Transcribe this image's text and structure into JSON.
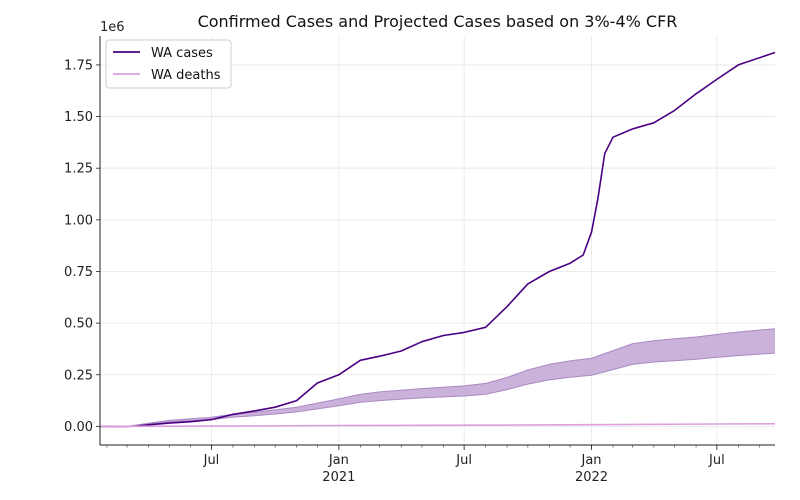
{
  "chart_data": {
    "type": "line",
    "title": "Confirmed Cases and Projected Cases based on 3%-4% CFR",
    "xlabel": "",
    "ylabel": "",
    "y_offset_label": "1e6",
    "ylim": [
      -0.09,
      1.89
    ],
    "xlim": [
      "2020-01-22",
      "2022-09-23"
    ],
    "y_ticks": [
      0.0,
      0.25,
      0.5,
      0.75,
      1.0,
      1.25,
      1.5,
      1.75
    ],
    "y_tick_labels": [
      "0.00",
      "0.25",
      "0.50",
      "0.75",
      "1.00",
      "1.25",
      "1.50",
      "1.75"
    ],
    "x_ticks": [
      {
        "date": "2020-07-01",
        "label": "Jul",
        "sublabel": ""
      },
      {
        "date": "2021-01-01",
        "label": "Jan",
        "sublabel": "2021"
      },
      {
        "date": "2021-07-01",
        "label": "Jul",
        "sublabel": ""
      },
      {
        "date": "2022-01-01",
        "label": "Jan",
        "sublabel": "2022"
      },
      {
        "date": "2022-07-01",
        "label": "Jul",
        "sublabel": ""
      }
    ],
    "grid": true,
    "legend_position": "top-left",
    "legend": [
      "WA cases",
      "WA deaths"
    ],
    "colors": {
      "cases": "#4b0082",
      "deaths": "#dda0dd",
      "band": "#c8aed8",
      "band_edge": "#a989c4"
    },
    "series": [
      {
        "name": "WA cases",
        "points": [
          [
            "2020-01-22",
            0.0
          ],
          [
            "2020-03-01",
            0.0
          ],
          [
            "2020-03-15",
            0.002
          ],
          [
            "2020-04-01",
            0.008
          ],
          [
            "2020-05-01",
            0.016
          ],
          [
            "2020-06-01",
            0.023
          ],
          [
            "2020-07-01",
            0.033
          ],
          [
            "2020-08-01",
            0.058
          ],
          [
            "2020-09-01",
            0.075
          ],
          [
            "2020-10-01",
            0.093
          ],
          [
            "2020-11-01",
            0.125
          ],
          [
            "2020-12-01",
            0.21
          ],
          [
            "2021-01-01",
            0.25
          ],
          [
            "2021-02-01",
            0.32
          ],
          [
            "2021-03-01",
            0.34
          ],
          [
            "2021-04-01",
            0.365
          ],
          [
            "2021-05-01",
            0.41
          ],
          [
            "2021-06-01",
            0.44
          ],
          [
            "2021-07-01",
            0.455
          ],
          [
            "2021-08-01",
            0.48
          ],
          [
            "2021-09-01",
            0.58
          ],
          [
            "2021-10-01",
            0.69
          ],
          [
            "2021-11-01",
            0.75
          ],
          [
            "2021-12-01",
            0.79
          ],
          [
            "2021-12-20",
            0.83
          ],
          [
            "2022-01-01",
            0.94
          ],
          [
            "2022-01-10",
            1.1
          ],
          [
            "2022-01-20",
            1.32
          ],
          [
            "2022-02-01",
            1.4
          ],
          [
            "2022-03-01",
            1.44
          ],
          [
            "2022-04-01",
            1.47
          ],
          [
            "2022-05-01",
            1.53
          ],
          [
            "2022-06-01",
            1.61
          ],
          [
            "2022-07-01",
            1.68
          ],
          [
            "2022-08-01",
            1.75
          ],
          [
            "2022-09-23",
            1.81
          ]
        ]
      },
      {
        "name": "WA deaths",
        "points": [
          [
            "2020-01-22",
            0.0
          ],
          [
            "2020-07-01",
            0.0015
          ],
          [
            "2021-01-01",
            0.004
          ],
          [
            "2021-07-01",
            0.006
          ],
          [
            "2022-01-01",
            0.0085
          ],
          [
            "2022-07-01",
            0.0115
          ],
          [
            "2022-09-23",
            0.0125
          ]
        ]
      }
    ],
    "projection_band": {
      "points": [
        [
          "2020-01-22",
          0.0,
          0.0
        ],
        [
          "2020-03-01",
          0.0,
          0.0
        ],
        [
          "2020-04-01",
          0.012,
          0.015
        ],
        [
          "2020-05-01",
          0.022,
          0.029
        ],
        [
          "2020-06-01",
          0.028,
          0.037
        ],
        [
          "2020-07-01",
          0.033,
          0.044
        ],
        [
          "2020-08-01",
          0.045,
          0.059
        ],
        [
          "2020-09-01",
          0.052,
          0.069
        ],
        [
          "2020-10-01",
          0.06,
          0.08
        ],
        [
          "2020-11-01",
          0.07,
          0.093
        ],
        [
          "2020-12-01",
          0.085,
          0.113
        ],
        [
          "2021-01-01",
          0.1,
          0.133
        ],
        [
          "2021-02-01",
          0.117,
          0.155
        ],
        [
          "2021-03-01",
          0.125,
          0.167
        ],
        [
          "2021-04-01",
          0.132,
          0.175
        ],
        [
          "2021-05-01",
          0.138,
          0.183
        ],
        [
          "2021-06-01",
          0.143,
          0.19
        ],
        [
          "2021-07-01",
          0.147,
          0.196
        ],
        [
          "2021-08-01",
          0.156,
          0.208
        ],
        [
          "2021-09-01",
          0.178,
          0.237
        ],
        [
          "2021-10-01",
          0.205,
          0.273
        ],
        [
          "2021-11-01",
          0.225,
          0.3
        ],
        [
          "2021-12-01",
          0.238,
          0.317
        ],
        [
          "2022-01-01",
          0.248,
          0.33
        ],
        [
          "2022-02-01",
          0.275,
          0.367
        ],
        [
          "2022-03-01",
          0.3,
          0.4
        ],
        [
          "2022-04-01",
          0.312,
          0.415
        ],
        [
          "2022-05-01",
          0.318,
          0.424
        ],
        [
          "2022-06-01",
          0.325,
          0.433
        ],
        [
          "2022-07-01",
          0.334,
          0.445
        ],
        [
          "2022-08-01",
          0.343,
          0.457
        ],
        [
          "2022-09-23",
          0.355,
          0.473
        ]
      ]
    }
  }
}
